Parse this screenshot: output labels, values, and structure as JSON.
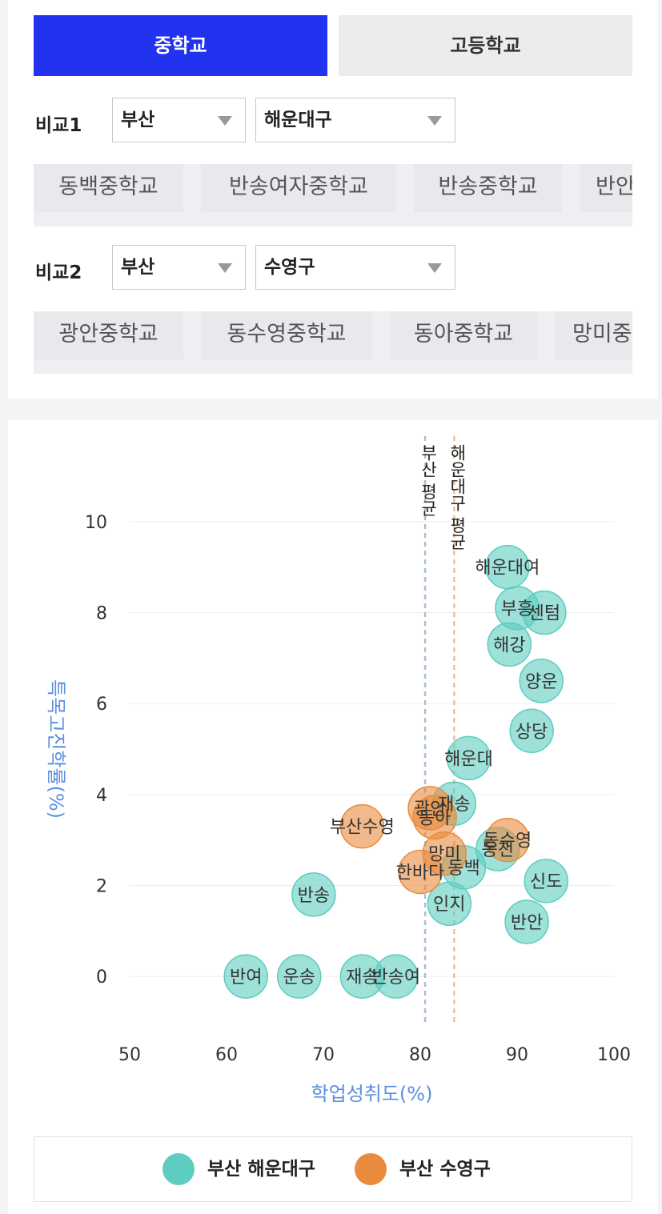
{
  "tabs": [
    {
      "label": "중학교",
      "active": true
    },
    {
      "label": "고등학교",
      "active": false
    }
  ],
  "compare1": {
    "label": "비교1",
    "city": "부산",
    "district": "해운대구",
    "schools": [
      "동백중학교",
      "반송여자중학교",
      "반송중학교",
      "반안"
    ]
  },
  "compare2": {
    "label": "비교2",
    "city": "부산",
    "district": "수영구",
    "schools": [
      "광안중학교",
      "동수영중학교",
      "동아중학교",
      "망미중"
    ]
  },
  "chart_data": {
    "type": "scatter",
    "xlabel": "학업성취도(%)",
    "ylabel": "특목고진학률(%)",
    "xlim": [
      50,
      100
    ],
    "ylim": [
      -1,
      11
    ],
    "xticks": [
      50,
      60,
      70,
      80,
      90,
      100
    ],
    "yticks": [
      0,
      2,
      4,
      6,
      8,
      10
    ],
    "grid": true,
    "legend_position": "bottom",
    "reference_lines": [
      {
        "x": 80.5,
        "label": "부산 평균",
        "color": "#a9bfd6"
      },
      {
        "x": 83.5,
        "label": "해운대구 평균",
        "color": "#f4c08f"
      }
    ],
    "series": [
      {
        "name": "부산 해운대구",
        "color": "#5ccdc0",
        "points": [
          {
            "label": "해운대여",
            "x": 89,
            "y": 9.0
          },
          {
            "label": "부흥",
            "x": 90,
            "y": 8.1
          },
          {
            "label": "센텀",
            "x": 92.8,
            "y": 8.0
          },
          {
            "label": "해강",
            "x": 89.2,
            "y": 7.3
          },
          {
            "label": "양운",
            "x": 92.5,
            "y": 6.5
          },
          {
            "label": "상당",
            "x": 91.5,
            "y": 5.4
          },
          {
            "label": "해운대",
            "x": 85,
            "y": 4.8
          },
          {
            "label": "재송",
            "x": 83.5,
            "y": 3.8
          },
          {
            "label": "반송",
            "x": 69,
            "y": 1.8
          },
          {
            "label": "동백",
            "x": 84.5,
            "y": 2.4
          },
          {
            "label": "인지",
            "x": 83,
            "y": 1.6
          },
          {
            "label": "동천",
            "x": 88,
            "y": 2.8
          },
          {
            "label": "신도",
            "x": 93,
            "y": 2.1
          },
          {
            "label": "반안",
            "x": 91,
            "y": 1.2
          },
          {
            "label": "반여",
            "x": 62,
            "y": 0
          },
          {
            "label": "운송",
            "x": 67.5,
            "y": 0
          },
          {
            "label": "재송",
            "x": 74,
            "y": 0
          },
          {
            "label": "반송여",
            "x": 77.5,
            "y": 0
          }
        ]
      },
      {
        "name": "부산 수영구",
        "color": "#ea8a3c",
        "points": [
          {
            "label": "광안",
            "x": 81,
            "y": 3.7
          },
          {
            "label": "동아",
            "x": 81.5,
            "y": 3.5
          },
          {
            "label": "부산수영",
            "x": 74,
            "y": 3.3
          },
          {
            "label": "동수영",
            "x": 89,
            "y": 3.0
          },
          {
            "label": "망미",
            "x": 82.5,
            "y": 2.7
          },
          {
            "label": "한바다",
            "x": 80,
            "y": 2.3
          }
        ]
      }
    ]
  }
}
